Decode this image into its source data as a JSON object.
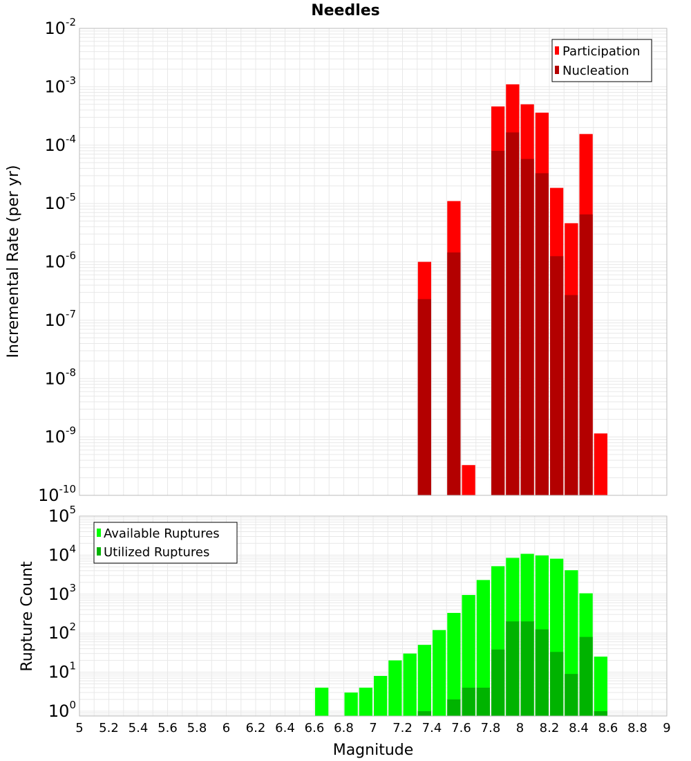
{
  "figure": {
    "title": "Needles",
    "xlabel": "Magnitude"
  },
  "colors": {
    "participation": "#ff0000",
    "nucleation": "#b30000",
    "available": "#00ff00",
    "utilized": "#00b300",
    "grid": "#e8e8e8",
    "frame": "#bbbbbb"
  },
  "chart_data": [
    {
      "type": "bar",
      "title": "Needles",
      "xlabel": "Magnitude",
      "ylabel": "Incremental Rate (per yr)",
      "yscale": "log",
      "xlim": [
        5,
        9
      ],
      "ylim": [
        1e-10,
        0.01
      ],
      "grid": true,
      "legend_position": "top-right",
      "bar_width": 0.1,
      "x": [
        7.35,
        7.55,
        7.65,
        7.85,
        7.95,
        8.05,
        8.15,
        8.25,
        8.35,
        8.45,
        8.55
      ],
      "series": [
        {
          "name": "Participation",
          "values": [
            1e-06,
            1.1e-05,
            3.3e-10,
            0.00046,
            0.0011,
            0.0005,
            0.00036,
            1.85e-05,
            4.6e-06,
            0.000155,
            1.15e-09
          ]
        },
        {
          "name": "Nucleation",
          "values": [
            2.3e-07,
            1.45e-06,
            null,
            8e-05,
            0.000165,
            5.8e-05,
            3.3e-05,
            1.25e-06,
            2.7e-07,
            6.5e-06,
            null
          ]
        }
      ]
    },
    {
      "type": "bar",
      "xlabel": "Magnitude",
      "ylabel": "Rupture Count",
      "yscale": "log",
      "xlim": [
        5,
        9
      ],
      "ylim": [
        0.75,
        100000
      ],
      "grid": true,
      "legend_position": "top-left",
      "bar_width": 0.1,
      "x": [
        6.65,
        6.75,
        6.85,
        6.95,
        7.05,
        7.15,
        7.25,
        7.35,
        7.45,
        7.55,
        7.65,
        7.75,
        7.85,
        7.95,
        8.05,
        8.15,
        8.25,
        8.35,
        8.45,
        8.55
      ],
      "series": [
        {
          "name": "Available Ruptures",
          "values": [
            4,
            null,
            3,
            4,
            8,
            20,
            30,
            50,
            120,
            330,
            950,
            2300,
            5200,
            8500,
            10800,
            9800,
            8100,
            4100,
            1050,
            25
          ]
        },
        {
          "name": "Utilized Ruptures",
          "values": [
            null,
            null,
            null,
            null,
            null,
            null,
            null,
            1,
            null,
            2,
            4,
            4,
            38,
            200,
            200,
            125,
            33,
            9,
            80,
            1
          ]
        }
      ]
    }
  ],
  "x_ticks": [
    "5",
    "5.2",
    "5.4",
    "5.6",
    "5.8",
    "6",
    "6.2",
    "6.4",
    "6.6",
    "6.8",
    "7",
    "7.2",
    "7.4",
    "7.6",
    "7.8",
    "8",
    "8.2",
    "8.4",
    "8.6",
    "8.8",
    "9"
  ],
  "top_y_ticks": [
    {
      "base": "10",
      "exp": "-2",
      "value": 0.01
    },
    {
      "base": "10",
      "exp": "-3",
      "value": 0.001
    },
    {
      "base": "10",
      "exp": "-4",
      "value": 0.0001
    },
    {
      "base": "10",
      "exp": "-5",
      "value": 1e-05
    },
    {
      "base": "10",
      "exp": "-6",
      "value": 1e-06
    },
    {
      "base": "10",
      "exp": "-7",
      "value": 1e-07
    },
    {
      "base": "10",
      "exp": "-8",
      "value": 1e-08
    },
    {
      "base": "10",
      "exp": "-9",
      "value": 1e-09
    },
    {
      "base": "10",
      "exp": "-10",
      "value": 1e-10
    }
  ],
  "bottom_y_ticks": [
    {
      "base": "10",
      "exp": "5",
      "value": 100000
    },
    {
      "base": "10",
      "exp": "4",
      "value": 10000
    },
    {
      "base": "10",
      "exp": "3",
      "value": 1000
    },
    {
      "base": "10",
      "exp": "2",
      "value": 100
    },
    {
      "base": "10",
      "exp": "1",
      "value": 10
    },
    {
      "base": "10",
      "exp": "0",
      "value": 1
    }
  ]
}
